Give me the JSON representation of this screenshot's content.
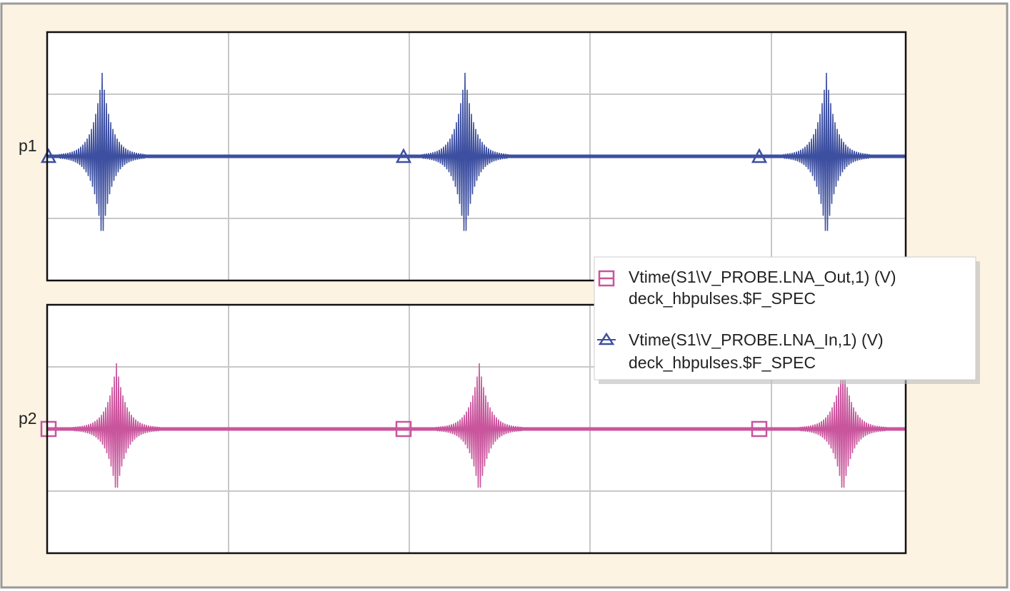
{
  "panels": [
    {
      "label": "p1"
    },
    {
      "label": "p2"
    }
  ],
  "legend": [
    {
      "line1": "Vtime(S1\\V_PROBE.LNA_Out,1) (V)",
      "line2": "deck_hbpulses.$F_SPEC"
    },
    {
      "line1": "Vtime(S1\\V_PROBE.LNA_In,1) (V)",
      "line2": "deck_hbpulses.$F_SPEC"
    }
  ]
}
